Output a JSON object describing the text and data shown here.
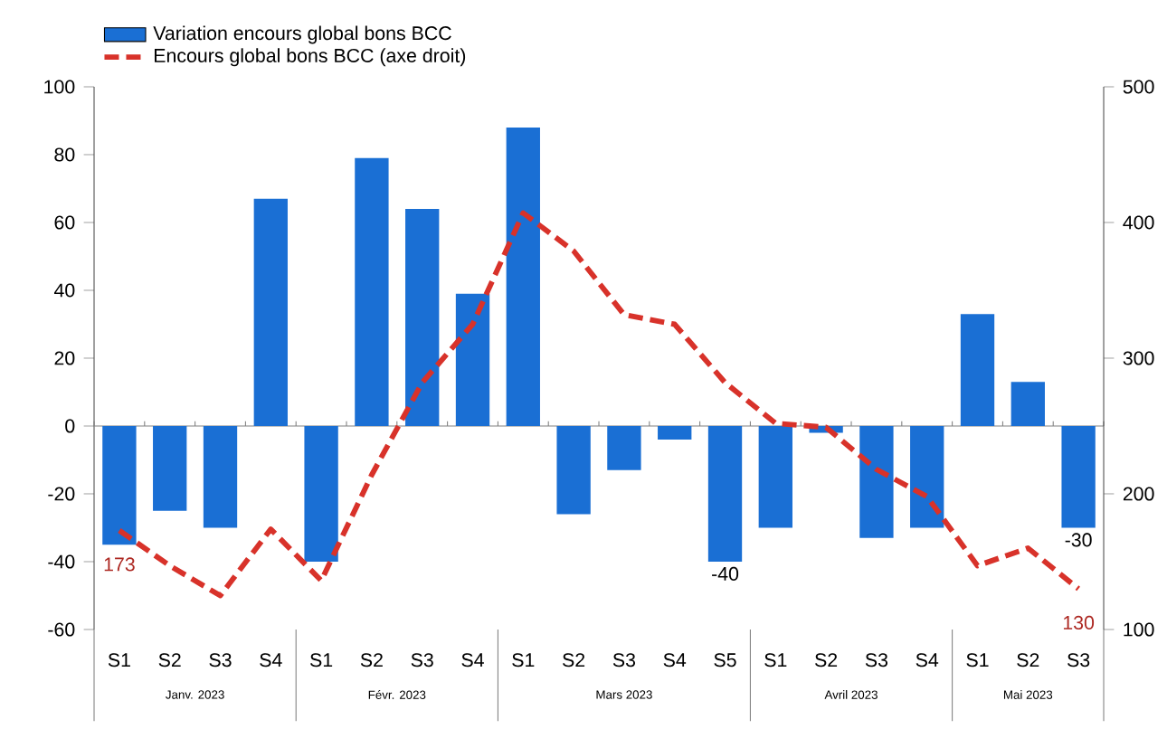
{
  "chart_data": {
    "type": "bar",
    "categories": [
      "S1",
      "S2",
      "S3",
      "S4",
      "S1",
      "S2",
      "S3",
      "S4",
      "S1",
      "S2",
      "S3",
      "S4",
      "S5",
      "S1",
      "S2",
      "S3",
      "S4",
      "S1",
      "S2",
      "S3"
    ],
    "series": [
      {
        "name": "Variation encours global bons BCC",
        "color": "#1a6fd4",
        "values": [
          -35,
          -25,
          -30,
          67,
          -40,
          79,
          64,
          39,
          88,
          -26,
          -13,
          -4,
          -40,
          -30,
          -2,
          -33,
          -30,
          33,
          13,
          -30
        ],
        "value_labels": [
          null,
          null,
          null,
          null,
          null,
          null,
          null,
          null,
          null,
          null,
          null,
          null,
          "-40",
          null,
          null,
          null,
          null,
          null,
          null,
          "-30"
        ]
      },
      {
        "type": "line",
        "axis": "y2",
        "name": "Encours global bons BCC (axe droit)",
        "color": "#d8322a",
        "line_style": "dashed",
        "values": [
          173,
          147,
          125,
          174,
          136,
          214,
          282,
          325,
          407,
          379,
          332,
          325,
          282,
          252,
          249,
          218,
          198,
          147,
          160,
          130
        ],
        "value_labels": [
          "173",
          null,
          null,
          null,
          null,
          null,
          null,
          null,
          null,
          null,
          null,
          null,
          null,
          null,
          null,
          null,
          null,
          null,
          null,
          "130"
        ]
      }
    ],
    "annotations": [
      "Janv. 2023",
      "Févr. 2023",
      "Mars 2023",
      "Avril 2023",
      "Mai 2023"
    ],
    "ylim": [
      -60,
      100
    ],
    "yticks": [
      -60,
      -40,
      -20,
      0,
      20,
      40,
      60,
      80,
      100
    ],
    "y2lim": [
      100,
      500
    ],
    "y2ticks": [
      100,
      200,
      300,
      400,
      500
    ],
    "legend": "top"
  }
}
